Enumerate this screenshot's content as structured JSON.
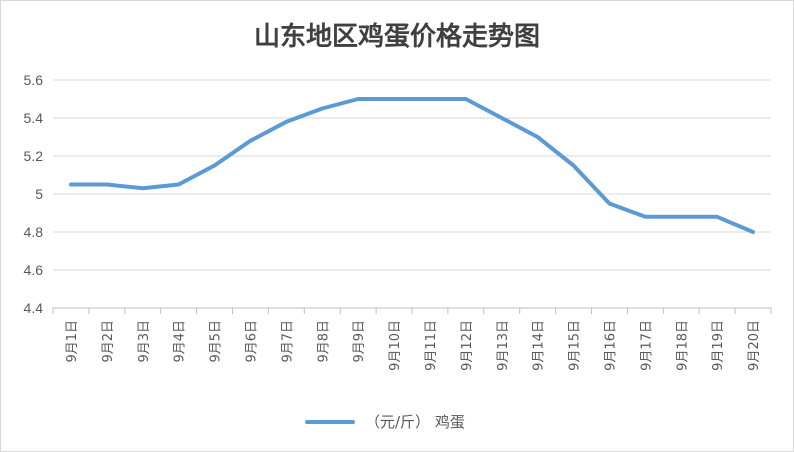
{
  "chart_data": {
    "type": "line",
    "title": "山东地区鸡蛋价格走势图",
    "categories": [
      "9月1日",
      "9月2日",
      "9月3日",
      "9月4日",
      "9月5日",
      "9月6日",
      "9月7日",
      "9月8日",
      "9月9日",
      "9月10日",
      "9月11日",
      "9月12日",
      "9月13日",
      "9月14日",
      "9月15日",
      "9月16日",
      "9月17日",
      "9月18日",
      "9月19日",
      "9月20日"
    ],
    "series": [
      {
        "name": "（元/斤） 鸡蛋",
        "color": "#5b9bd5",
        "values": [
          5.05,
          5.05,
          5.03,
          5.05,
          5.15,
          5.28,
          5.38,
          5.45,
          5.5,
          5.5,
          5.5,
          5.5,
          5.4,
          5.3,
          5.15,
          4.95,
          4.88,
          4.88,
          4.88,
          4.8
        ]
      }
    ],
    "yticks": [
      "4.4",
      "4.6",
      "4.8",
      "5",
      "5.2",
      "5.4",
      "5.6"
    ],
    "ylim": [
      4.4,
      5.6
    ],
    "grid": true,
    "legend": "bottom",
    "xlabel": "",
    "ylabel": ""
  }
}
